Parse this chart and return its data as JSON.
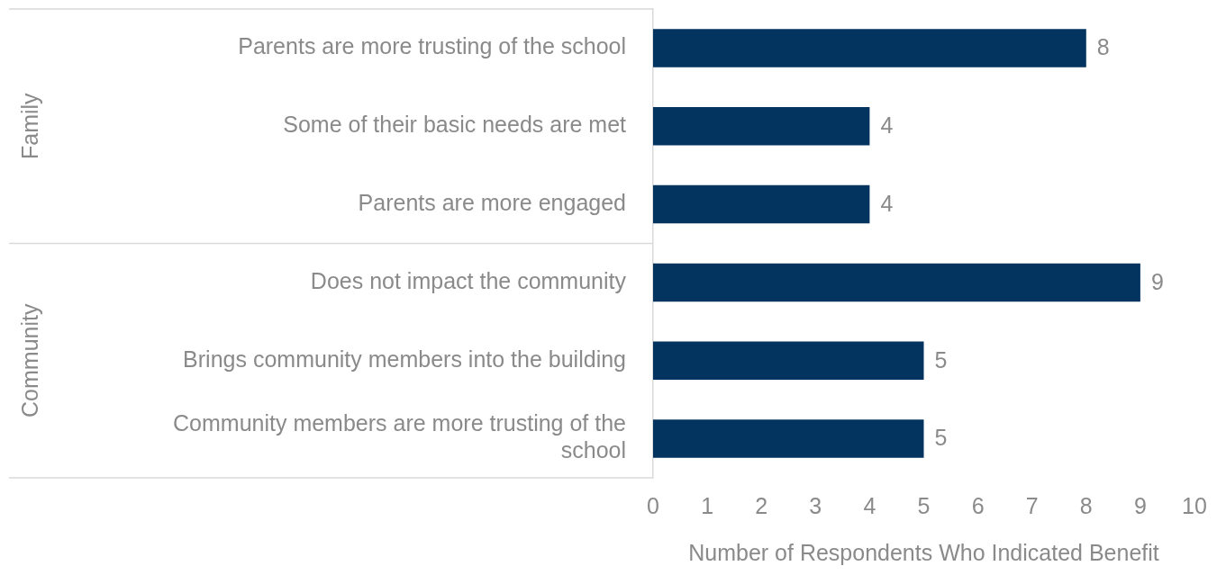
{
  "chart_data": {
    "type": "bar",
    "orientation": "horizontal",
    "categories": [
      "Parents are more trusting of the school",
      "Some of their basic needs are met",
      "Parents are more engaged",
      "Does not impact the community",
      "Brings community members into the building",
      "Community members are more trusting of the school"
    ],
    "values": [
      8,
      4,
      4,
      9,
      5,
      5
    ],
    "color": "#03345f",
    "xlim": [
      0,
      10
    ],
    "xticks": [
      0,
      1,
      2,
      3,
      4,
      5,
      6,
      7,
      8,
      9,
      10
    ],
    "xlabel": "Number of Respondents Who Indicated Benefit",
    "data_labels": true,
    "grid": false,
    "annotations": [
      "Family",
      "Community"
    ]
  }
}
